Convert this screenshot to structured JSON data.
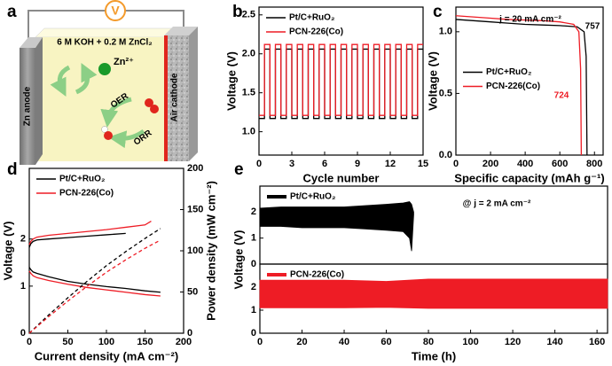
{
  "diagram": {
    "label": "a",
    "meter": "V",
    "electrolyte": "6 M KOH + 0.2 M ZnCl₂",
    "ion": "Zn²⁺",
    "oer": "OER",
    "orr": "ORR",
    "anode": "Zn anode",
    "cathode": "Air cathode"
  },
  "chart_data": [
    {
      "type": "line",
      "panel": "b",
      "x_label": "Cycle number",
      "y_label": "Voltage (V)",
      "x": [
        0,
        0.5,
        0.5,
        1,
        1,
        1.5,
        1.5,
        2,
        2,
        2.5,
        2.5,
        3,
        3,
        3.5,
        3.5,
        4,
        4,
        4.5,
        4.5,
        5,
        5,
        5.5,
        5.5,
        6,
        6,
        6.5,
        6.5,
        7,
        7,
        7.5,
        7.5,
        8,
        8,
        8.5,
        8.5,
        9,
        9,
        9.5,
        9.5,
        10,
        10,
        10.5,
        10.5,
        11,
        11,
        11.5,
        11.5,
        12,
        12,
        12.5,
        12.5,
        13,
        13,
        13.5,
        13.5,
        14,
        14,
        14.5,
        14.5,
        15
      ],
      "xlim": [
        0,
        15
      ],
      "xticks": [
        0,
        3,
        6,
        9,
        12,
        15
      ],
      "ylim": [
        0.7,
        2.6
      ],
      "yticks": [
        {
          "value": 1,
          "label": "1.0"
        },
        1.5,
        {
          "value": 2,
          "label": "2.0"
        },
        2.5
      ],
      "legend": "upper left",
      "series": [
        {
          "name": "Pt/C+RuO₂",
          "color": "#000000",
          "values": [
            1.17,
            1.17,
            2.06,
            2.06,
            1.17,
            1.17,
            2.06,
            2.06,
            1.17,
            1.17,
            2.06,
            2.06,
            1.17,
            1.17,
            2.06,
            2.06,
            1.17,
            1.17,
            2.06,
            2.06,
            1.17,
            1.17,
            2.06,
            2.06,
            1.17,
            1.17,
            2.06,
            2.06,
            1.17,
            1.17,
            2.06,
            2.06,
            1.17,
            1.17,
            2.06,
            2.06,
            1.17,
            1.17,
            2.06,
            2.06,
            1.17,
            1.17,
            2.06,
            2.06,
            1.17,
            1.17,
            2.06,
            2.06,
            1.17,
            1.17,
            2.06,
            2.06,
            1.17,
            1.17,
            2.06,
            2.06,
            1.17,
            1.17,
            2.06,
            2.06
          ]
        },
        {
          "name": "PCN-226(Co)",
          "color": "#ee1c25",
          "values": [
            1.21,
            1.21,
            2.12,
            2.12,
            1.21,
            1.21,
            2.12,
            2.12,
            1.21,
            1.21,
            2.12,
            2.12,
            1.21,
            1.21,
            2.12,
            2.12,
            1.21,
            1.21,
            2.12,
            2.12,
            1.21,
            1.21,
            2.12,
            2.12,
            1.21,
            1.21,
            2.12,
            2.12,
            1.21,
            1.21,
            2.12,
            2.12,
            1.21,
            1.21,
            2.12,
            2.12,
            1.21,
            1.21,
            2.12,
            2.12,
            1.21,
            1.21,
            2.12,
            2.12,
            1.21,
            1.21,
            2.12,
            2.12,
            1.21,
            1.21,
            2.12,
            2.12,
            1.21,
            1.21,
            2.12,
            2.12,
            1.21,
            1.21,
            2.12,
            2.12
          ]
        }
      ]
    },
    {
      "type": "line",
      "panel": "c",
      "x_label": "Specific capacity (mAh g⁻¹)",
      "y_label": "Voltage (V)",
      "xlim": [
        0,
        850
      ],
      "xticks": [
        0,
        200,
        400,
        600,
        800
      ],
      "ylim": [
        0,
        1.2
      ],
      "yticks": [
        {
          "value": 0,
          "label": "0.0"
        },
        0.5,
        {
          "value": 1,
          "label": "1.0"
        }
      ],
      "legend": "center left",
      "annotations": [
        {
          "text": "j = 20 mA cm⁻²",
          "color": "#000000"
        },
        {
          "text": "757",
          "color": "#000000"
        },
        {
          "text": "724",
          "color": "#ee1c25"
        }
      ],
      "series": [
        {
          "name": "Pt/C+RuO₂",
          "color": "#000000",
          "x": [
            0,
            100,
            200,
            300,
            400,
            500,
            600,
            700,
            740,
            752,
            757
          ],
          "values": [
            1.1,
            1.09,
            1.08,
            1.07,
            1.06,
            1.055,
            1.05,
            1.04,
            1.0,
            0.8,
            0
          ]
        },
        {
          "name": "PCN-226(Co)",
          "color": "#ee1c25",
          "x": [
            0,
            100,
            200,
            300,
            400,
            500,
            600,
            680,
            710,
            720,
            724
          ],
          "values": [
            1.13,
            1.12,
            1.11,
            1.1,
            1.095,
            1.09,
            1.08,
            1.06,
            1.0,
            0.7,
            0
          ]
        }
      ]
    },
    {
      "type": "line",
      "panel": "d",
      "x_label": "Current density (mA cm⁻²)",
      "y_label": "Voltage (V)",
      "y2_label": "Power density (mW cm⁻²)",
      "xlim": [
        0,
        200
      ],
      "xticks": [
        0,
        50,
        100,
        150,
        200
      ],
      "ylim": [
        0,
        3.5
      ],
      "yticks": [
        0,
        1,
        2
      ],
      "y2lim": [
        0,
        200
      ],
      "y2ticks": [
        0,
        50,
        100,
        150,
        200
      ],
      "legend": "upper left",
      "series": [
        {
          "name": "Pt/C+RuO₂",
          "color": "#000000",
          "x": [
            0,
            2,
            5,
            10,
            25,
            50,
            75,
            100,
            125
          ],
          "values": [
            1.82,
            1.9,
            1.95,
            1.98,
            2.0,
            2.03,
            2.06,
            2.09,
            2.12
          ]
        },
        {
          "name": "PCN-226(Co)",
          "color": "#ee1c25",
          "x": [
            0,
            2,
            5,
            10,
            25,
            50,
            75,
            100,
            125,
            150,
            158
          ],
          "values": [
            1.88,
            1.95,
            2.0,
            2.04,
            2.08,
            2.12,
            2.16,
            2.2,
            2.25,
            2.3,
            2.38
          ]
        },
        {
          "color": "#000000",
          "x": [
            0,
            2,
            5,
            10,
            25,
            50,
            75,
            100,
            125,
            150,
            170
          ],
          "values": [
            1.4,
            1.35,
            1.3,
            1.27,
            1.2,
            1.1,
            1.04,
            0.99,
            0.95,
            0.9,
            0.87
          ]
        },
        {
          "color": "#ee1c25",
          "x": [
            0,
            2,
            5,
            10,
            25,
            50,
            75,
            100,
            125,
            150,
            170
          ],
          "values": [
            1.32,
            1.27,
            1.22,
            1.18,
            1.12,
            1.04,
            0.97,
            0.92,
            0.87,
            0.82,
            0.79
          ]
        },
        {
          "color": "#000000",
          "axis": "y2",
          "dash": true,
          "x": [
            0,
            25,
            50,
            75,
            100,
            125,
            150,
            170
          ],
          "values": [
            0,
            22,
            43,
            63,
            82,
            99,
            115,
            127
          ]
        },
        {
          "color": "#ee1c25",
          "axis": "y2",
          "dash": true,
          "x": [
            0,
            25,
            50,
            75,
            100,
            125,
            150,
            170
          ],
          "values": [
            0,
            20,
            39,
            57,
            74,
            89,
            103,
            113
          ]
        }
      ]
    },
    {
      "type": "band",
      "panel": "e",
      "y_label": "Voltage (V)",
      "xlim": [
        0,
        165
      ],
      "ylim": [
        0,
        3
      ],
      "yticks": [
        0,
        1,
        2
      ],
      "legend": "upper left",
      "annotations": [
        {
          "text": "@ j = 2 mA cm⁻²",
          "color": "#000000"
        }
      ],
      "series": [
        {
          "name": "Pt/C+RuO₂",
          "color": "#000000",
          "x": [
            0,
            10,
            20,
            30,
            40,
            50,
            60,
            68,
            71,
            72,
            73
          ],
          "values": [
            2.15,
            2.2,
            2.2,
            2.2,
            2.2,
            2.25,
            2.3,
            2.35,
            2.4,
            2.3,
            2.0
          ],
          "lower": [
            1.45,
            1.45,
            1.4,
            1.4,
            1.4,
            1.35,
            1.3,
            1.25,
            1.0,
            0.5,
            1.9
          ]
        }
      ]
    },
    {
      "type": "band",
      "x_label": "Time (h)",
      "xlim": [
        0,
        165
      ],
      "xticks": [
        0,
        20,
        40,
        60,
        80,
        100,
        120,
        140,
        160
      ],
      "ylim": [
        0,
        3
      ],
      "yticks": [
        0,
        1,
        2
      ],
      "legend": "upper left",
      "series": [
        {
          "name": "PCN-226(Co)",
          "color": "#ee1c25",
          "x": [
            0,
            20,
            40,
            60,
            80,
            100,
            120,
            140,
            165
          ],
          "values": [
            2.3,
            2.3,
            2.3,
            2.25,
            2.35,
            2.35,
            2.35,
            2.35,
            2.35
          ],
          "lower": [
            1.1,
            1.1,
            1.1,
            1.12,
            1.08,
            1.08,
            1.08,
            1.08,
            1.08
          ]
        }
      ]
    }
  ]
}
